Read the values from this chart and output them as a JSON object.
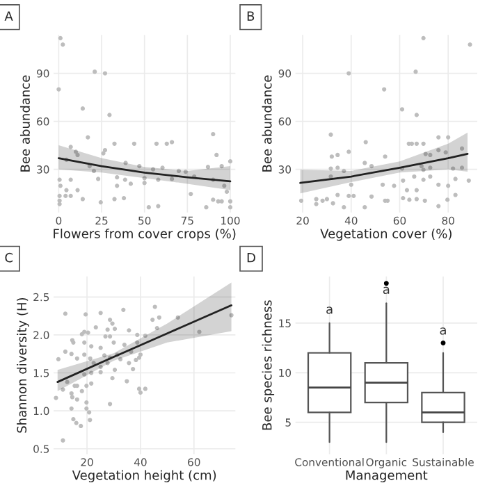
{
  "chart_data": [
    {
      "type": "scatter",
      "title": "A",
      "xlabel": "Flowers from cover crops (%)",
      "ylabel": "Bee abundance",
      "xlim": [
        -3,
        103
      ],
      "xticks": [
        0,
        25,
        50,
        75,
        100
      ],
      "ylim": [
        3,
        114
      ],
      "yticks": [
        30,
        60,
        90
      ],
      "grid": true,
      "series": [
        {
          "type": "scatter",
          "marker": "circle",
          "color": "#bdbdbd",
          "x": [
            1,
            2.4,
            0,
            21,
            27,
            14,
            29.6,
            17,
            32.5,
            44,
            57,
            63,
            66,
            90,
            92,
            95,
            100,
            27,
            26,
            7,
            10,
            11,
            4.5,
            18,
            20.5,
            39,
            47,
            55,
            60.5,
            70,
            74,
            87,
            0.5,
            7,
            23,
            34,
            38.7,
            50,
            58,
            66,
            79,
            90,
            96.5,
            1,
            4.5,
            11,
            34,
            42,
            50,
            77,
            90,
            93,
            95,
            98,
            0.5,
            4,
            7,
            14,
            24.5,
            32.5,
            38,
            52.5,
            58,
            86,
            100,
            100,
            0.5,
            0.5
          ],
          "values": [
            112,
            108,
            80,
            91,
            90,
            68,
            64,
            50,
            46,
            46,
            46,
            46,
            47,
            52,
            39,
            32,
            35,
            42,
            40,
            44,
            41,
            39,
            36,
            32,
            29,
            34,
            32,
            30,
            31,
            29,
            28.5,
            31.5,
            23.5,
            23.5,
            24,
            25,
            23.5,
            24.5,
            23.5,
            24,
            25.5,
            23.5,
            19.7,
            19.7,
            17,
            17,
            19.7,
            21,
            21.5,
            14.6,
            11,
            10,
            10,
            16,
            13.4,
            13.4,
            13.4,
            11.4,
            9.4,
            11.4,
            12,
            6.3,
            7,
            6.3,
            10,
            6.3,
            10.4,
            8.3
          ]
        },
        {
          "type": "line",
          "color": "#222222",
          "x": [
            0,
            25,
            50,
            75,
            100
          ],
          "values": [
            37,
            32,
            28,
            25,
            22.5
          ],
          "lower": [
            30,
            28,
            24.5,
            21,
            17
          ],
          "upper": [
            45,
            37,
            31.5,
            29,
            32
          ]
        }
      ]
    },
    {
      "type": "scatter",
      "title": "B",
      "xlabel": "Vegetation cover (%)",
      "ylabel": "Bee abundance",
      "xlim": [
        17,
        92
      ],
      "xticks": [
        20,
        40,
        60,
        80
      ],
      "ylim": [
        3,
        114
      ],
      "yticks": [
        30,
        60,
        90
      ],
      "grid": true,
      "series": [
        {
          "type": "scatter",
          "marker": "circle",
          "color": "#bdbdbd",
          "x": [
            69.8,
            89,
            39,
            66.6,
            53.6,
            61,
            67,
            31.6,
            46,
            63.8,
            65,
            67,
            69.8,
            76,
            80,
            39,
            32,
            34.4,
            54,
            70.7,
            72.6,
            76,
            79,
            85.7,
            45.6,
            48.4,
            37,
            31.6,
            34.4,
            61,
            69,
            69.8,
            72.6,
            82,
            85.7,
            88.5,
            83,
            31.6,
            40,
            53,
            57.7,
            61.4,
            66,
            69.8,
            72.6,
            76,
            80,
            63,
            67,
            19.4,
            25.6,
            25.6,
            28.2,
            30,
            32.5,
            34.4,
            39,
            41,
            37,
            45.6,
            48.4,
            54,
            55,
            61.4,
            64,
            67,
            70.4,
            76,
            79.7,
            83
          ],
          "values": [
            112,
            108,
            90,
            91,
            80,
            67.5,
            64,
            51.7,
            47,
            46,
            46,
            46,
            46,
            50,
            50,
            41,
            38,
            39,
            38,
            39.6,
            39,
            42,
            40.6,
            43,
            34,
            32,
            29,
            30.5,
            31,
            30.5,
            32,
            29.7,
            31,
            30.5,
            31,
            23,
            24,
            25.5,
            20.4,
            20.4,
            19.7,
            23,
            25.5,
            23.5,
            25.5,
            20.4,
            19.7,
            17,
            17,
            10.4,
            11.4,
            8.3,
            10.4,
            11.4,
            8.8,
            14,
            13.4,
            13.4,
            6.3,
            6.3,
            13,
            10.4,
            10.4,
            12,
            11,
            11.4,
            10.4,
            7,
            11,
            14
          ]
        },
        {
          "type": "line",
          "color": "#222222",
          "x": [
            19,
            40,
            60,
            80,
            88
          ],
          "values": [
            21.5,
            25.5,
            31,
            37,
            39.7
          ],
          "lower": [
            15,
            22,
            28,
            30,
            28.5
          ],
          "upper": [
            29.7,
            29,
            35,
            46,
            53
          ]
        }
      ]
    },
    {
      "type": "scatter",
      "title": "C",
      "xlabel": "Vegetation height (cm)",
      "ylabel": "Shannon diversity (H)",
      "xlim": [
        7.5,
        75.5
      ],
      "xticks": [
        20,
        40,
        60
      ],
      "ylim": [
        0.43,
        2.77
      ],
      "yticks": [
        0.5,
        {
          "value": 1,
          "label": "1.0"
        },
        1.5,
        {
          "value": 2,
          "label": "2.0"
        },
        2.5
      ],
      "grid": true,
      "series": [
        {
          "type": "scatter",
          "marker": "circle",
          "color": "#bdbdbd",
          "x": [
            11.9,
            25.1,
            33.6,
            45.4,
            74,
            44.5,
            47,
            54,
            19.5,
            28.6,
            29.5,
            23.3,
            27.7,
            30.4,
            35.7,
            46.2,
            19,
            20.4,
            18.1,
            14.5,
            14.9,
            19,
            26.9,
            28.6,
            38.8,
            41.8,
            62,
            21.6,
            25.1,
            30,
            34,
            38.8,
            11.9,
            9.3,
            14.2,
            16.3,
            19,
            21.2,
            22.5,
            26.5,
            28.6,
            31.3,
            32.5,
            36.5,
            39.5,
            35.7,
            40,
            38.3,
            27.7,
            25.1,
            30.4,
            25.1,
            19,
            21.6,
            29.5,
            34.9,
            37.2,
            12.6,
            15.4,
            16.3,
            19.8,
            21.6,
            11,
            14.2,
            18.1,
            39.5,
            41.8,
            40,
            8.4,
            14.5,
            16.3,
            19.8,
            28.6,
            14.2,
            19.8,
            20.8,
            14.9,
            16,
            17.7,
            21.1,
            11
          ],
          "values": [
            2.28,
            2.29,
            2.33,
            2.37,
            2.26,
            2.2,
            2.23,
            2.23,
            2.27,
            2.2,
            2.15,
            2.1,
            2.07,
            2.08,
            2.06,
            2.09,
            2.04,
            2.03,
            2.01,
            1.93,
            1.9,
            1.9,
            1.98,
            1.98,
            2.0,
            1.99,
            2.04,
            1.85,
            1.83,
            1.9,
            1.87,
            1.9,
            1.78,
            1.68,
            1.75,
            1.69,
            1.74,
            1.69,
            1.63,
            1.73,
            1.7,
            1.74,
            1.68,
            1.78,
            1.7,
            1.63,
            1.74,
            1.67,
            1.63,
            1.58,
            1.54,
            1.51,
            1.48,
            1.5,
            1.43,
            1.39,
            1.55,
            1.38,
            1.33,
            1.33,
            1.33,
            1.36,
            1.28,
            1.23,
            1.26,
            1.29,
            1.29,
            1.24,
            1.17,
            1.18,
            1.15,
            1.11,
            1.09,
            1.03,
            1.03,
            0.98,
            0.89,
            0.84,
            0.8,
            0.88,
            0.61
          ]
        },
        {
          "type": "line",
          "color": "#222222",
          "x": [
            9,
            30,
            50,
            74
          ],
          "values": [
            1.38,
            1.71,
            2.02,
            2.39
          ],
          "lower": [
            1.26,
            1.66,
            1.9,
            2.05
          ],
          "upper": [
            1.54,
            1.76,
            2.15,
            2.69
          ]
        }
      ]
    },
    {
      "type": "box",
      "title": "D",
      "xlabel": "Management",
      "ylabel": "Bee species richness",
      "categories": [
        "Conventional",
        "Organic",
        "Sustainable"
      ],
      "ylim": [
        1.8,
        19.7
      ],
      "yticks": [
        5,
        10,
        15
      ],
      "grid": true,
      "boxes": [
        {
          "low": 3,
          "q1": 6,
          "median": 8.5,
          "q3": 12,
          "high": 15
        },
        {
          "low": 3,
          "q1": 7,
          "median": 9,
          "q3": 11,
          "high": 17,
          "outliers": [
            19
          ]
        },
        {
          "low": 4,
          "q1": 5,
          "median": 6,
          "q3": 8,
          "high": 12,
          "outliers": [
            13
          ]
        }
      ],
      "annotations": [
        "a",
        "a",
        "a"
      ]
    }
  ]
}
